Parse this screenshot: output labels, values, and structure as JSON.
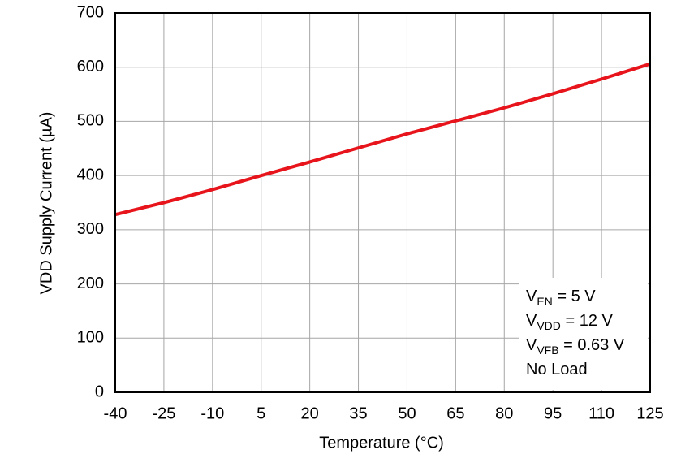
{
  "chart_data": {
    "type": "line",
    "x_label": "Temperature (°C)",
    "y_label": "VDD Supply Current (µA)",
    "x": [
      -40,
      -25,
      -10,
      5,
      20,
      35,
      50,
      65,
      80,
      95,
      110,
      125
    ],
    "series": [
      {
        "name": "VDD Supply Current",
        "color": "#e8141b",
        "values": [
          328,
          350,
          374,
          400,
          425,
          451,
          477,
          501,
          525,
          551,
          578,
          606
        ]
      }
    ],
    "xlim": [
      -40,
      125
    ],
    "xticks": [
      -40,
      -25,
      -10,
      5,
      20,
      35,
      50,
      65,
      80,
      95,
      110,
      125
    ],
    "ylim": [
      0,
      700
    ],
    "yticks": [
      0,
      100,
      200,
      300,
      400,
      500,
      600,
      700
    ],
    "grid": true,
    "annotations": [
      {
        "base": "V",
        "sub": "EN",
        "rest": " = 5 V"
      },
      {
        "base": "V",
        "sub": "VDD",
        "rest": " = 12 V"
      },
      {
        "base": "V",
        "sub": "VFB",
        "rest": " = 0.63 V"
      },
      {
        "base": "No Load"
      }
    ]
  }
}
